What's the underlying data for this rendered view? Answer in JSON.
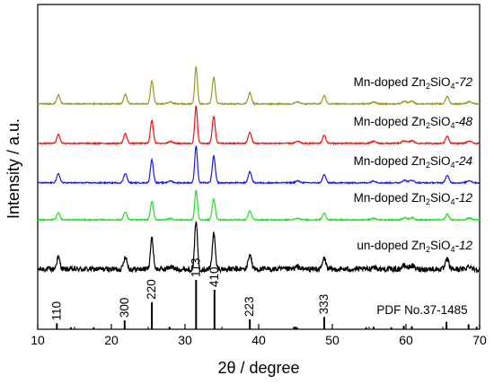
{
  "chart_data": {
    "type": "line",
    "xlabel": "2θ / degree",
    "ylabel": "Intensity / a.u.",
    "xlim": [
      10,
      70
    ],
    "x_ticks": [
      10,
      20,
      30,
      40,
      50,
      60,
      70
    ],
    "y_ticks_shown": false,
    "grid": false,
    "legend": "labels placed above each curve on the right",
    "series": [
      {
        "name": "un-doped Zn2SiO4-12",
        "label_prefix": "un-doped Zn",
        "label_mid": "SiO",
        "label_suffix": "-12",
        "color": "#000000",
        "offset": 0.0,
        "noise": 0.055,
        "scale": 1.0
      },
      {
        "name": "Mn-doped Zn2SiO4-12",
        "label_prefix": "Mn-doped Zn",
        "label_mid": "SiO",
        "label_suffix": "-12",
        "color": "#22dd22",
        "offset": 1.0,
        "noise": 0.012,
        "scale": 0.6
      },
      {
        "name": "Mn-doped Zn2SiO4-24",
        "label_prefix": "Mn-doped Zn",
        "label_mid": "SiO",
        "label_suffix": "-24",
        "color": "#1a1aee",
        "offset": 1.75,
        "noise": 0.012,
        "scale": 0.75
      },
      {
        "name": "Mn-doped Zn2SiO4-48",
        "label_prefix": "Mn-doped Zn",
        "label_mid": "SiO",
        "label_suffix": "-48",
        "color": "#ee1111",
        "offset": 2.55,
        "noise": 0.012,
        "scale": 0.75
      },
      {
        "name": "Mn-doped Zn2SiO4-72",
        "label_prefix": "Mn-doped Zn",
        "label_mid": "SiO",
        "label_suffix": "-72",
        "color": "#999922",
        "offset": 3.35,
        "noise": 0.012,
        "scale": 0.75
      }
    ],
    "peaks": [
      {
        "two_theta": 12.8,
        "rel": 0.24,
        "width": 0.22
      },
      {
        "two_theta": 21.9,
        "rel": 0.26,
        "width": 0.22
      },
      {
        "two_theta": 25.5,
        "rel": 0.62,
        "width": 0.2
      },
      {
        "two_theta": 28.0,
        "rel": 0.05,
        "width": 0.3
      },
      {
        "two_theta": 31.5,
        "rel": 1.0,
        "width": 0.18
      },
      {
        "two_theta": 33.9,
        "rel": 0.72,
        "width": 0.2
      },
      {
        "two_theta": 38.8,
        "rel": 0.3,
        "width": 0.22
      },
      {
        "two_theta": 45.3,
        "rel": 0.05,
        "width": 0.3
      },
      {
        "two_theta": 48.9,
        "rel": 0.22,
        "width": 0.22
      },
      {
        "two_theta": 55.6,
        "rel": 0.05,
        "width": 0.3
      },
      {
        "two_theta": 59.8,
        "rel": 0.07,
        "width": 0.3
      },
      {
        "two_theta": 60.8,
        "rel": 0.07,
        "width": 0.3
      },
      {
        "two_theta": 65.6,
        "rel": 0.2,
        "width": 0.22
      },
      {
        "two_theta": 68.6,
        "rel": 0.06,
        "width": 0.3
      }
    ],
    "reference": {
      "label": "PDF No.37-1485",
      "sticks": [
        {
          "two_theta": 12.6,
          "rel": 0.12,
          "hkl": "110"
        },
        {
          "two_theta": 21.8,
          "rel": 0.18,
          "hkl": "300"
        },
        {
          "two_theta": 25.5,
          "rel": 0.55,
          "hkl": "220"
        },
        {
          "two_theta": 31.5,
          "rel": 1.0,
          "hkl": "113"
        },
        {
          "two_theta": 34.0,
          "rel": 0.8,
          "hkl": "410"
        },
        {
          "two_theta": 38.8,
          "rel": 0.2,
          "hkl": "223"
        },
        {
          "two_theta": 48.9,
          "rel": 0.25,
          "hkl": "333"
        },
        {
          "two_theta": 14.5,
          "rel": 0.04,
          "hkl": ""
        },
        {
          "two_theta": 17.6,
          "rel": 0.04,
          "hkl": ""
        },
        {
          "two_theta": 27.9,
          "rel": 0.05,
          "hkl": ""
        },
        {
          "two_theta": 44.8,
          "rel": 0.05,
          "hkl": ""
        },
        {
          "two_theta": 45.2,
          "rel": 0.04,
          "hkl": ""
        },
        {
          "two_theta": 54.6,
          "rel": 0.04,
          "hkl": ""
        },
        {
          "two_theta": 55.6,
          "rel": 0.05,
          "hkl": ""
        },
        {
          "two_theta": 58.0,
          "rel": 0.04,
          "hkl": ""
        },
        {
          "two_theta": 59.7,
          "rel": 0.07,
          "hkl": ""
        },
        {
          "two_theta": 60.8,
          "rel": 0.06,
          "hkl": ""
        },
        {
          "two_theta": 65.5,
          "rel": 0.15,
          "hkl": ""
        },
        {
          "two_theta": 68.5,
          "rel": 0.1,
          "hkl": ""
        },
        {
          "two_theta": 69.6,
          "rel": 0.05,
          "hkl": ""
        }
      ]
    }
  }
}
